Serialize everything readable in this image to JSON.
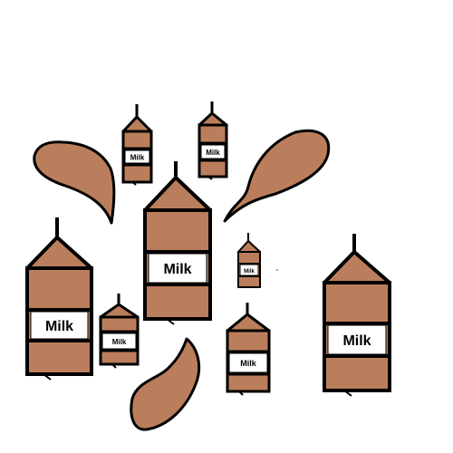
{
  "colors": {
    "carton": "#bb7e5c",
    "splash": "#bb7e5c",
    "outline": "#000000",
    "label_bg": "#ffffff"
  },
  "cartons": [
    {
      "label": "Milk"
    },
    {
      "label": "Milk"
    },
    {
      "label": "Milk"
    },
    {
      "label": "Milk"
    },
    {
      "label": "Milk"
    },
    {
      "label": "Milk"
    },
    {
      "label": "Milk"
    },
    {
      "label": "Milk"
    },
    {
      "label": "Milk"
    }
  ]
}
